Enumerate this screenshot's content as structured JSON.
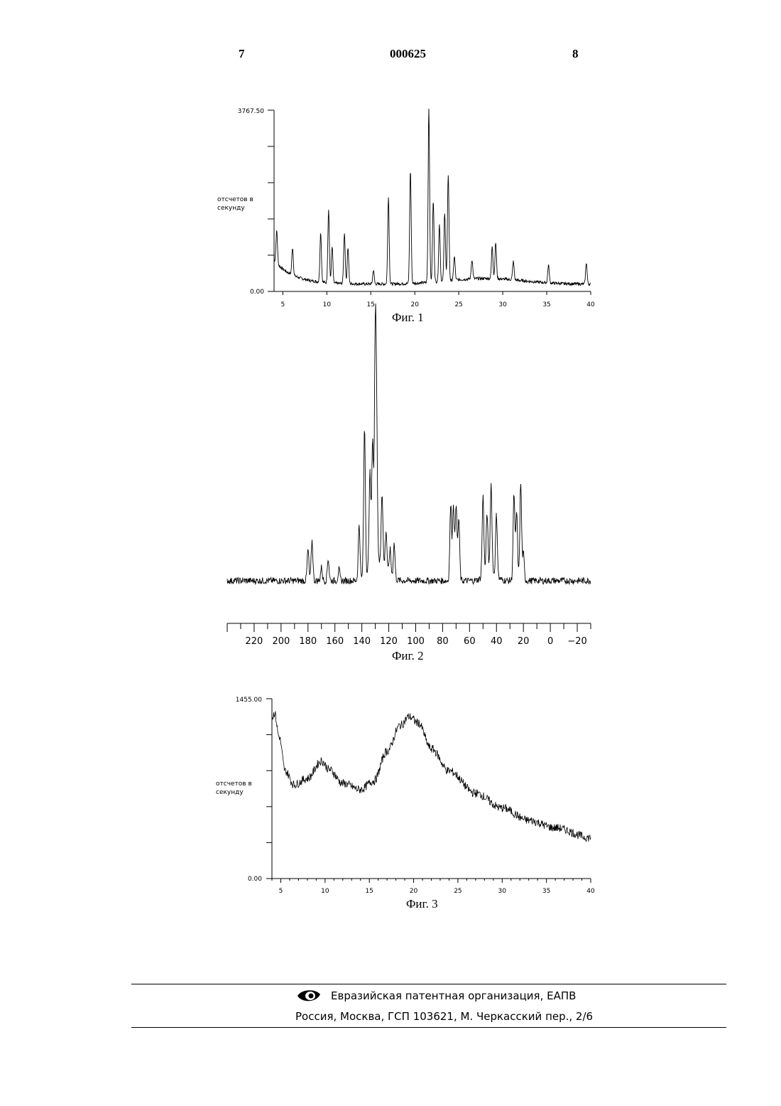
{
  "header": {
    "left_page": "7",
    "doc_number": "000625",
    "right_page": "8"
  },
  "figures": {
    "fig1": {
      "caption": "Фиг. 1",
      "ylabel_line1": "отсчетов в",
      "ylabel_line2": "секунду"
    },
    "fig2": {
      "caption": "Фиг. 2"
    },
    "fig3": {
      "caption": "Фиг. 3",
      "ylabel_line1": "отсчетов в",
      "ylabel_line2": "секунду"
    }
  },
  "chart_data": [
    {
      "type": "line",
      "xlabel": "",
      "ylabel": "отсчетов в секунду",
      "xlim": [
        4,
        40
      ],
      "ylim": [
        0,
        3767.5
      ],
      "ytick_labels": [
        "3767.50",
        "0.00"
      ],
      "xticks": [
        5,
        10,
        15,
        20,
        25,
        30,
        35,
        40
      ],
      "peaks": [
        [
          4.3,
          820
        ],
        [
          6.1,
          720
        ],
        [
          9.3,
          1180
        ],
        [
          10.2,
          1660
        ],
        [
          10.6,
          900
        ],
        [
          12.0,
          1210
        ],
        [
          12.4,
          900
        ],
        [
          15.3,
          440
        ],
        [
          17.0,
          1950
        ],
        [
          19.5,
          2500
        ],
        [
          21.6,
          3767.5
        ],
        [
          22.1,
          1830
        ],
        [
          22.8,
          1330
        ],
        [
          23.4,
          1580
        ],
        [
          23.8,
          2360
        ],
        [
          24.5,
          640
        ],
        [
          26.5,
          550
        ],
        [
          28.8,
          830
        ],
        [
          29.2,
          900
        ],
        [
          31.2,
          530
        ],
        [
          35.2,
          520
        ],
        [
          39.5,
          600
        ]
      ]
    },
    {
      "type": "line",
      "xlabel": "",
      "ylabel": "",
      "xlim": [
        240,
        -30
      ],
      "xticks": [
        220,
        200,
        180,
        160,
        140,
        120,
        100,
        80,
        60,
        40,
        20,
        0,
        -20
      ],
      "xtick_labels": [
        "220",
        "200",
        "180",
        "160",
        "140",
        "120",
        "100",
        "80",
        "60",
        "40",
        "20",
        "0",
        "−20"
      ],
      "peaks": [
        [
          180,
          0.14
        ],
        [
          177,
          0.18
        ],
        [
          170,
          0.06
        ],
        [
          165,
          0.1
        ],
        [
          157,
          0.05
        ],
        [
          142,
          0.25
        ],
        [
          138,
          0.68
        ],
        [
          134,
          0.44
        ],
        [
          132,
          0.58
        ],
        [
          130,
          1.0
        ],
        [
          129,
          0.52
        ],
        [
          125,
          0.33
        ],
        [
          122,
          0.18
        ],
        [
          119,
          0.12
        ],
        [
          116,
          0.16
        ],
        [
          74,
          0.34
        ],
        [
          72,
          0.35
        ],
        [
          70,
          0.35
        ],
        [
          68,
          0.28
        ],
        [
          50,
          0.36
        ],
        [
          47,
          0.27
        ],
        [
          44,
          0.4
        ],
        [
          40,
          0.28
        ],
        [
          27,
          0.39
        ],
        [
          25,
          0.31
        ],
        [
          22,
          0.44
        ],
        [
          20,
          0.12
        ]
      ]
    },
    {
      "type": "line",
      "xlabel": "",
      "ylabel": "отсчетов в секунду",
      "xlim": [
        4,
        40
      ],
      "ylim": [
        0,
        1455
      ],
      "ytick_labels": [
        "1455.00",
        "0.00"
      ],
      "xticks": [
        5,
        10,
        15,
        20,
        25,
        30,
        35,
        40
      ],
      "profile": [
        [
          4.0,
          1300
        ],
        [
          4.3,
          1340
        ],
        [
          4.8,
          1150
        ],
        [
          5.5,
          870
        ],
        [
          6.5,
          760
        ],
        [
          8.0,
          810
        ],
        [
          9.6,
          950
        ],
        [
          10.5,
          880
        ],
        [
          12.0,
          770
        ],
        [
          14.0,
          720
        ],
        [
          15.5,
          790
        ],
        [
          17.0,
          1030
        ],
        [
          18.5,
          1240
        ],
        [
          19.5,
          1310
        ],
        [
          20.5,
          1260
        ],
        [
          22.0,
          1050
        ],
        [
          24.0,
          870
        ],
        [
          27.0,
          690
        ],
        [
          30.0,
          570
        ],
        [
          33.0,
          470
        ],
        [
          36.0,
          410
        ],
        [
          40.0,
          330
        ]
      ]
    }
  ],
  "footer": {
    "org": "Евразийская патентная организация, ЕАПВ",
    "address": "Россия, Москва, ГСП 103621, М. Черкасский пер., 2/6"
  },
  "colors": {
    "ink": "#000000",
    "background": "#ffffff"
  },
  "icons": {
    "logo": "eapo-eye-logo"
  }
}
